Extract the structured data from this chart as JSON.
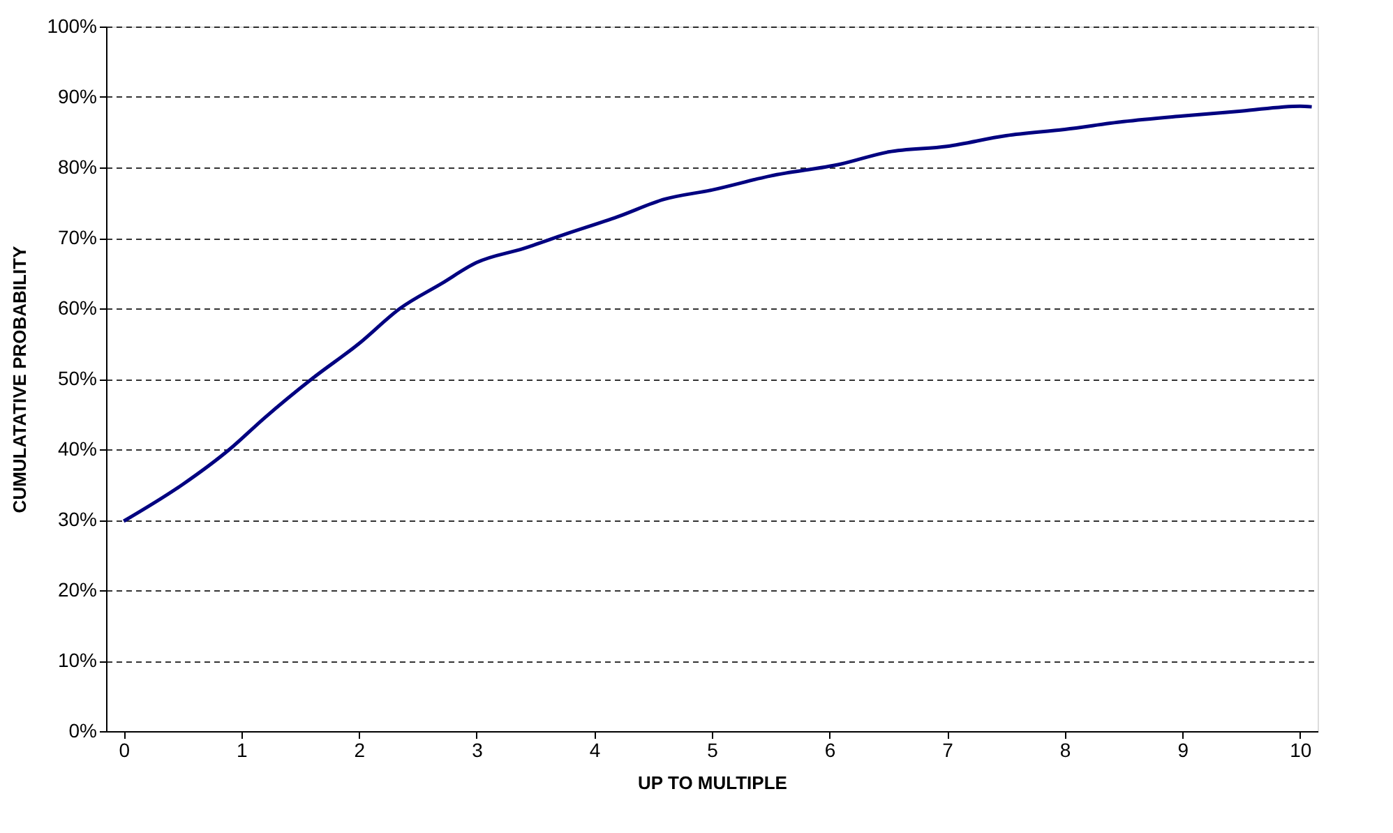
{
  "chart_data": {
    "type": "line",
    "xlabel": "UP TO MULTIPLE",
    "ylabel": "CUMULATATIVE PROBABILITY",
    "x": [
      0,
      0.5,
      0.9,
      1.2,
      1.6,
      2,
      2.35,
      2.7,
      3,
      3.4,
      3.75,
      4.2,
      4.6,
      5,
      5.5,
      6.1,
      6.5,
      7,
      7.5,
      8,
      8.5,
      9,
      9.5,
      10,
      10.1
    ],
    "series": [
      {
        "color": "#000080",
        "values": [
          29.8,
          35,
          40,
          44.5,
          50,
          55,
          60,
          63.5,
          66.5,
          68.5,
          70.5,
          73,
          75.5,
          76.8,
          78.8,
          80.5,
          82.2,
          83,
          84.5,
          85.4,
          86.5,
          87.3,
          88,
          88.7,
          88.6
        ]
      }
    ],
    "xlim": [
      -0.15,
      10.15
    ],
    "xticks": [
      0,
      1,
      2,
      3,
      4,
      5,
      6,
      7,
      8,
      9,
      10
    ],
    "ylim": [
      0,
      100
    ],
    "yticks": [
      {
        "value": 0,
        "label": "0%"
      },
      {
        "value": 10,
        "label": "10%"
      },
      {
        "value": 20,
        "label": "20%"
      },
      {
        "value": 30,
        "label": "30%"
      },
      {
        "value": 40,
        "label": "40%"
      },
      {
        "value": 50,
        "label": "50%"
      },
      {
        "value": 60,
        "label": "60%"
      },
      {
        "value": 70,
        "label": "70%"
      },
      {
        "value": 80,
        "label": "80%"
      },
      {
        "value": 90,
        "label": "90%"
      },
      {
        "value": 100,
        "label": "100%"
      }
    ],
    "grid": "y",
    "line_style": "solid",
    "marker": "none"
  }
}
